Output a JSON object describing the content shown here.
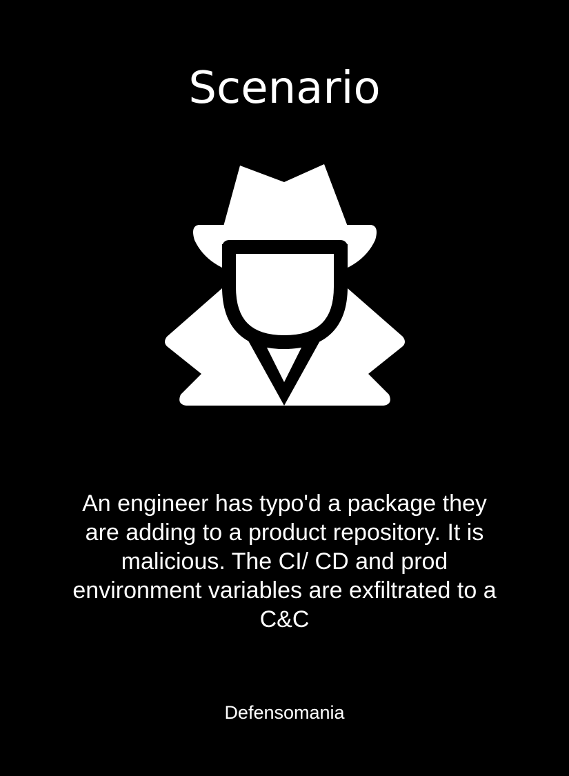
{
  "card": {
    "title": "Scenario",
    "icon": "spy-icon",
    "description": "An engineer has typo'd a package they are adding to a product repository. It is malicious. The CI/ CD and prod environment variables are exfiltrated to a C&C",
    "footer": "Defensomania"
  },
  "colors": {
    "background": "#000000",
    "foreground": "#ffffff"
  }
}
